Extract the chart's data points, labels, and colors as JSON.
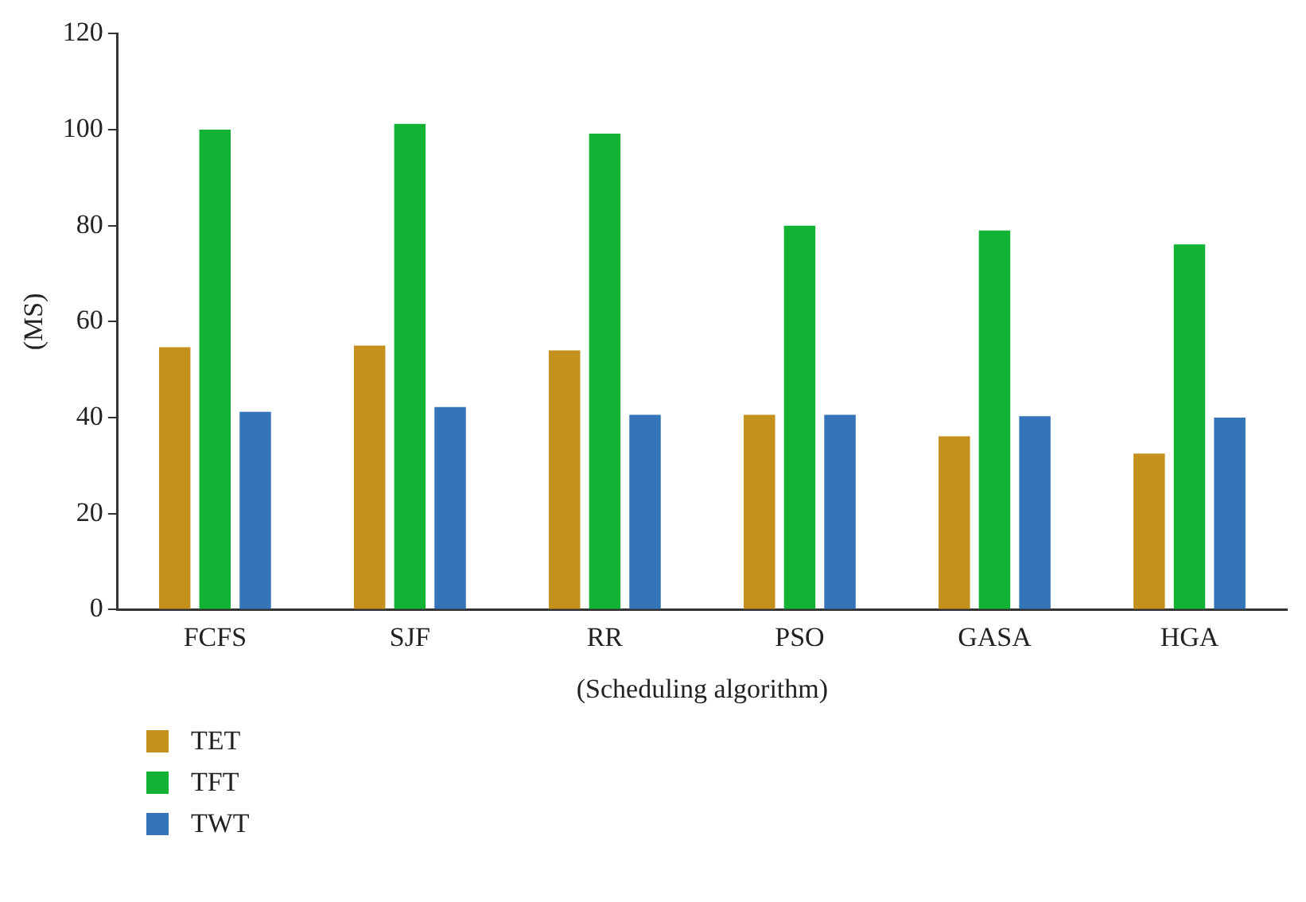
{
  "chart_data": {
    "type": "bar",
    "xlabel": "(Scheduling algorithm)",
    "ylabel": "(MS)",
    "categories": [
      "FCFS",
      "SJF",
      "RR",
      "PSO",
      "GASA",
      "HGA"
    ],
    "series": [
      {
        "name": "TET",
        "color": "#c4921c",
        "values": [
          54.7,
          55.0,
          54.0,
          40.6,
          36.1,
          32.5
        ]
      },
      {
        "name": "TFT",
        "color": "#12b334",
        "values": [
          100,
          101.2,
          99.2,
          80.0,
          79.0,
          76.1
        ]
      },
      {
        "name": "TWT",
        "color": "#3474b9",
        "values": [
          41.2,
          42.2,
          40.6,
          40.6,
          40.3,
          40.0
        ]
      }
    ],
    "ylim": [
      0,
      120
    ],
    "yticks": [
      0,
      20,
      40,
      60,
      80,
      100,
      120
    ],
    "grid": false,
    "legend": "bottom left"
  }
}
